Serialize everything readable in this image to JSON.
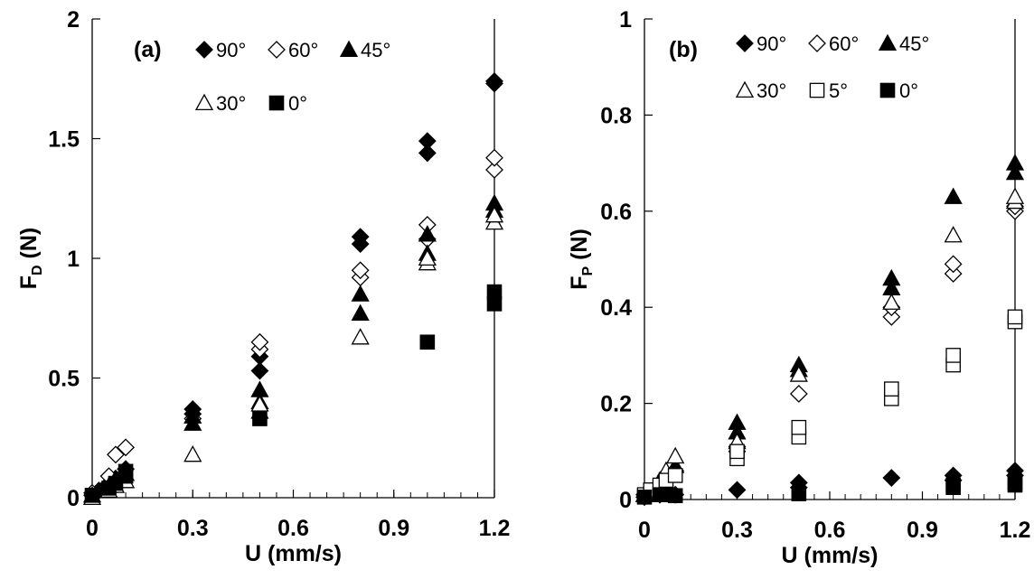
{
  "chart_data": [
    {
      "type": "scatter",
      "panel_label": "(a)",
      "xlabel": "U (mm/s)",
      "ylabel_main": "F",
      "ylabel_sub": "D",
      "ylabel_unit": " (N)",
      "xlim": [
        0,
        1.2
      ],
      "ylim": [
        0,
        2
      ],
      "x_ticks": [
        "0",
        "0.3",
        "0.6",
        "0.9",
        "1.2"
      ],
      "y_ticks": [
        "0",
        "0.5",
        "1",
        "1.5",
        "2"
      ],
      "legend": [
        "90°",
        "60°",
        "45°",
        "30°",
        "0°"
      ],
      "series": [
        {
          "name": "90°",
          "marker": "diamond-filled",
          "points": [
            [
              0,
              0.01
            ],
            [
              0.02,
              0.03
            ],
            [
              0.05,
              0.06
            ],
            [
              0.07,
              0.08
            ],
            [
              0.1,
              0.12
            ],
            [
              0.3,
              0.35
            ],
            [
              0.3,
              0.37
            ],
            [
              0.5,
              0.53
            ],
            [
              0.5,
              0.59
            ],
            [
              0.8,
              1.06
            ],
            [
              0.8,
              1.09
            ],
            [
              1.0,
              1.44
            ],
            [
              1.0,
              1.49
            ],
            [
              1.2,
              1.73
            ],
            [
              1.2,
              1.74
            ]
          ]
        },
        {
          "name": "60°",
          "marker": "diamond-open",
          "points": [
            [
              0,
              0.02
            ],
            [
              0.05,
              0.09
            ],
            [
              0.07,
              0.18
            ],
            [
              0.1,
              0.21
            ],
            [
              0.3,
              0.33
            ],
            [
              0.5,
              0.62
            ],
            [
              0.5,
              0.65
            ],
            [
              0.8,
              0.92
            ],
            [
              0.8,
              0.95
            ],
            [
              1.0,
              1.08
            ],
            [
              1.0,
              1.14
            ],
            [
              1.2,
              1.37
            ],
            [
              1.2,
              1.42
            ]
          ]
        },
        {
          "name": "45°",
          "marker": "triangle-filled",
          "points": [
            [
              0,
              0.01
            ],
            [
              0.05,
              0.05
            ],
            [
              0.07,
              0.08
            ],
            [
              0.1,
              0.1
            ],
            [
              0.3,
              0.31
            ],
            [
              0.3,
              0.34
            ],
            [
              0.5,
              0.4
            ],
            [
              0.5,
              0.45
            ],
            [
              0.8,
              0.77
            ],
            [
              0.8,
              0.85
            ],
            [
              1.0,
              1.02
            ],
            [
              1.0,
              1.1
            ],
            [
              1.2,
              1.2
            ],
            [
              1.2,
              1.23
            ]
          ]
        },
        {
          "name": "30°",
          "marker": "triangle-open",
          "points": [
            [
              0,
              0.0
            ],
            [
              0.05,
              0.03
            ],
            [
              0.07,
              0.05
            ],
            [
              0.1,
              0.07
            ],
            [
              0.3,
              0.18
            ],
            [
              0.5,
              0.36
            ],
            [
              0.5,
              0.39
            ],
            [
              0.8,
              0.67
            ],
            [
              1.0,
              0.98
            ],
            [
              1.0,
              1.0
            ],
            [
              1.2,
              1.15
            ],
            [
              1.2,
              1.18
            ]
          ]
        },
        {
          "name": "0°",
          "marker": "square-filled",
          "points": [
            [
              0,
              0.01
            ],
            [
              0.05,
              0.04
            ],
            [
              0.07,
              0.06
            ],
            [
              0.1,
              0.09
            ],
            [
              0.1,
              0.11
            ],
            [
              0.5,
              0.33
            ],
            [
              1.0,
              0.65
            ],
            [
              1.2,
              0.81
            ],
            [
              1.2,
              0.86
            ]
          ]
        }
      ]
    },
    {
      "type": "scatter",
      "panel_label": "(b)",
      "xlabel": "U (mm/s)",
      "ylabel_main": "F",
      "ylabel_sub": "P",
      "ylabel_unit": " (N)",
      "xlim": [
        0,
        1.2
      ],
      "ylim": [
        0,
        1
      ],
      "x_ticks": [
        "0",
        "0.3",
        "0.6",
        "0.9",
        "1.2"
      ],
      "y_ticks": [
        "0",
        "0.2",
        "0.4",
        "0.6",
        "0.8",
        "1"
      ],
      "legend": [
        "90°",
        "60°",
        "45°",
        "30°",
        "5°",
        "0°"
      ],
      "series": [
        {
          "name": "90°",
          "marker": "diamond-filled",
          "points": [
            [
              0,
              0.005
            ],
            [
              0.05,
              0.01
            ],
            [
              0.1,
              0.01
            ],
            [
              0.3,
              0.02
            ],
            [
              0.5,
              0.025
            ],
            [
              0.5,
              0.035
            ],
            [
              0.8,
              0.045
            ],
            [
              1.0,
              0.04
            ],
            [
              1.0,
              0.05
            ],
            [
              1.2,
              0.05
            ],
            [
              1.2,
              0.06
            ]
          ]
        },
        {
          "name": "60°",
          "marker": "diamond-open",
          "points": [
            [
              0,
              0.01
            ],
            [
              0.05,
              0.03
            ],
            [
              0.07,
              0.05
            ],
            [
              0.1,
              0.06
            ],
            [
              0.3,
              0.1
            ],
            [
              0.3,
              0.11
            ],
            [
              0.5,
              0.22
            ],
            [
              0.8,
              0.38
            ],
            [
              0.8,
              0.4
            ],
            [
              1.0,
              0.47
            ],
            [
              1.0,
              0.49
            ],
            [
              1.2,
              0.6
            ],
            [
              1.2,
              0.61
            ]
          ]
        },
        {
          "name": "45°",
          "marker": "triangle-filled",
          "points": [
            [
              0,
              0.01
            ],
            [
              0.05,
              0.03
            ],
            [
              0.07,
              0.05
            ],
            [
              0.1,
              0.07
            ],
            [
              0.3,
              0.14
            ],
            [
              0.3,
              0.16
            ],
            [
              0.5,
              0.27
            ],
            [
              0.5,
              0.28
            ],
            [
              0.8,
              0.44
            ],
            [
              0.8,
              0.46
            ],
            [
              1.0,
              0.63
            ],
            [
              1.2,
              0.68
            ],
            [
              1.2,
              0.7
            ]
          ]
        },
        {
          "name": "30°",
          "marker": "triangle-open",
          "points": [
            [
              0,
              0.01
            ],
            [
              0.05,
              0.04
            ],
            [
              0.07,
              0.06
            ],
            [
              0.1,
              0.09
            ],
            [
              0.3,
              0.12
            ],
            [
              0.5,
              0.26
            ],
            [
              0.8,
              0.41
            ],
            [
              1.0,
              0.55
            ],
            [
              1.2,
              0.62
            ],
            [
              1.2,
              0.63
            ]
          ]
        },
        {
          "name": "5°",
          "marker": "square-open",
          "points": [
            [
              0,
              0.01
            ],
            [
              0.02,
              0.02
            ],
            [
              0.05,
              0.03
            ],
            [
              0.07,
              0.04
            ],
            [
              0.1,
              0.05
            ],
            [
              0.3,
              0.085
            ],
            [
              0.3,
              0.1
            ],
            [
              0.5,
              0.13
            ],
            [
              0.5,
              0.15
            ],
            [
              0.8,
              0.21
            ],
            [
              0.8,
              0.23
            ],
            [
              1.0,
              0.28
            ],
            [
              1.0,
              0.3
            ],
            [
              1.2,
              0.37
            ],
            [
              1.2,
              0.38
            ]
          ]
        },
        {
          "name": "0°",
          "marker": "square-filled",
          "points": [
            [
              0,
              0.005
            ],
            [
              0.05,
              0.01
            ],
            [
              0.07,
              0.01
            ],
            [
              0.1,
              0.008
            ],
            [
              0.5,
              0.012
            ],
            [
              1.0,
              0.025
            ],
            [
              1.0,
              0.03
            ],
            [
              1.2,
              0.03
            ],
            [
              1.2,
              0.035
            ]
          ]
        }
      ]
    }
  ]
}
